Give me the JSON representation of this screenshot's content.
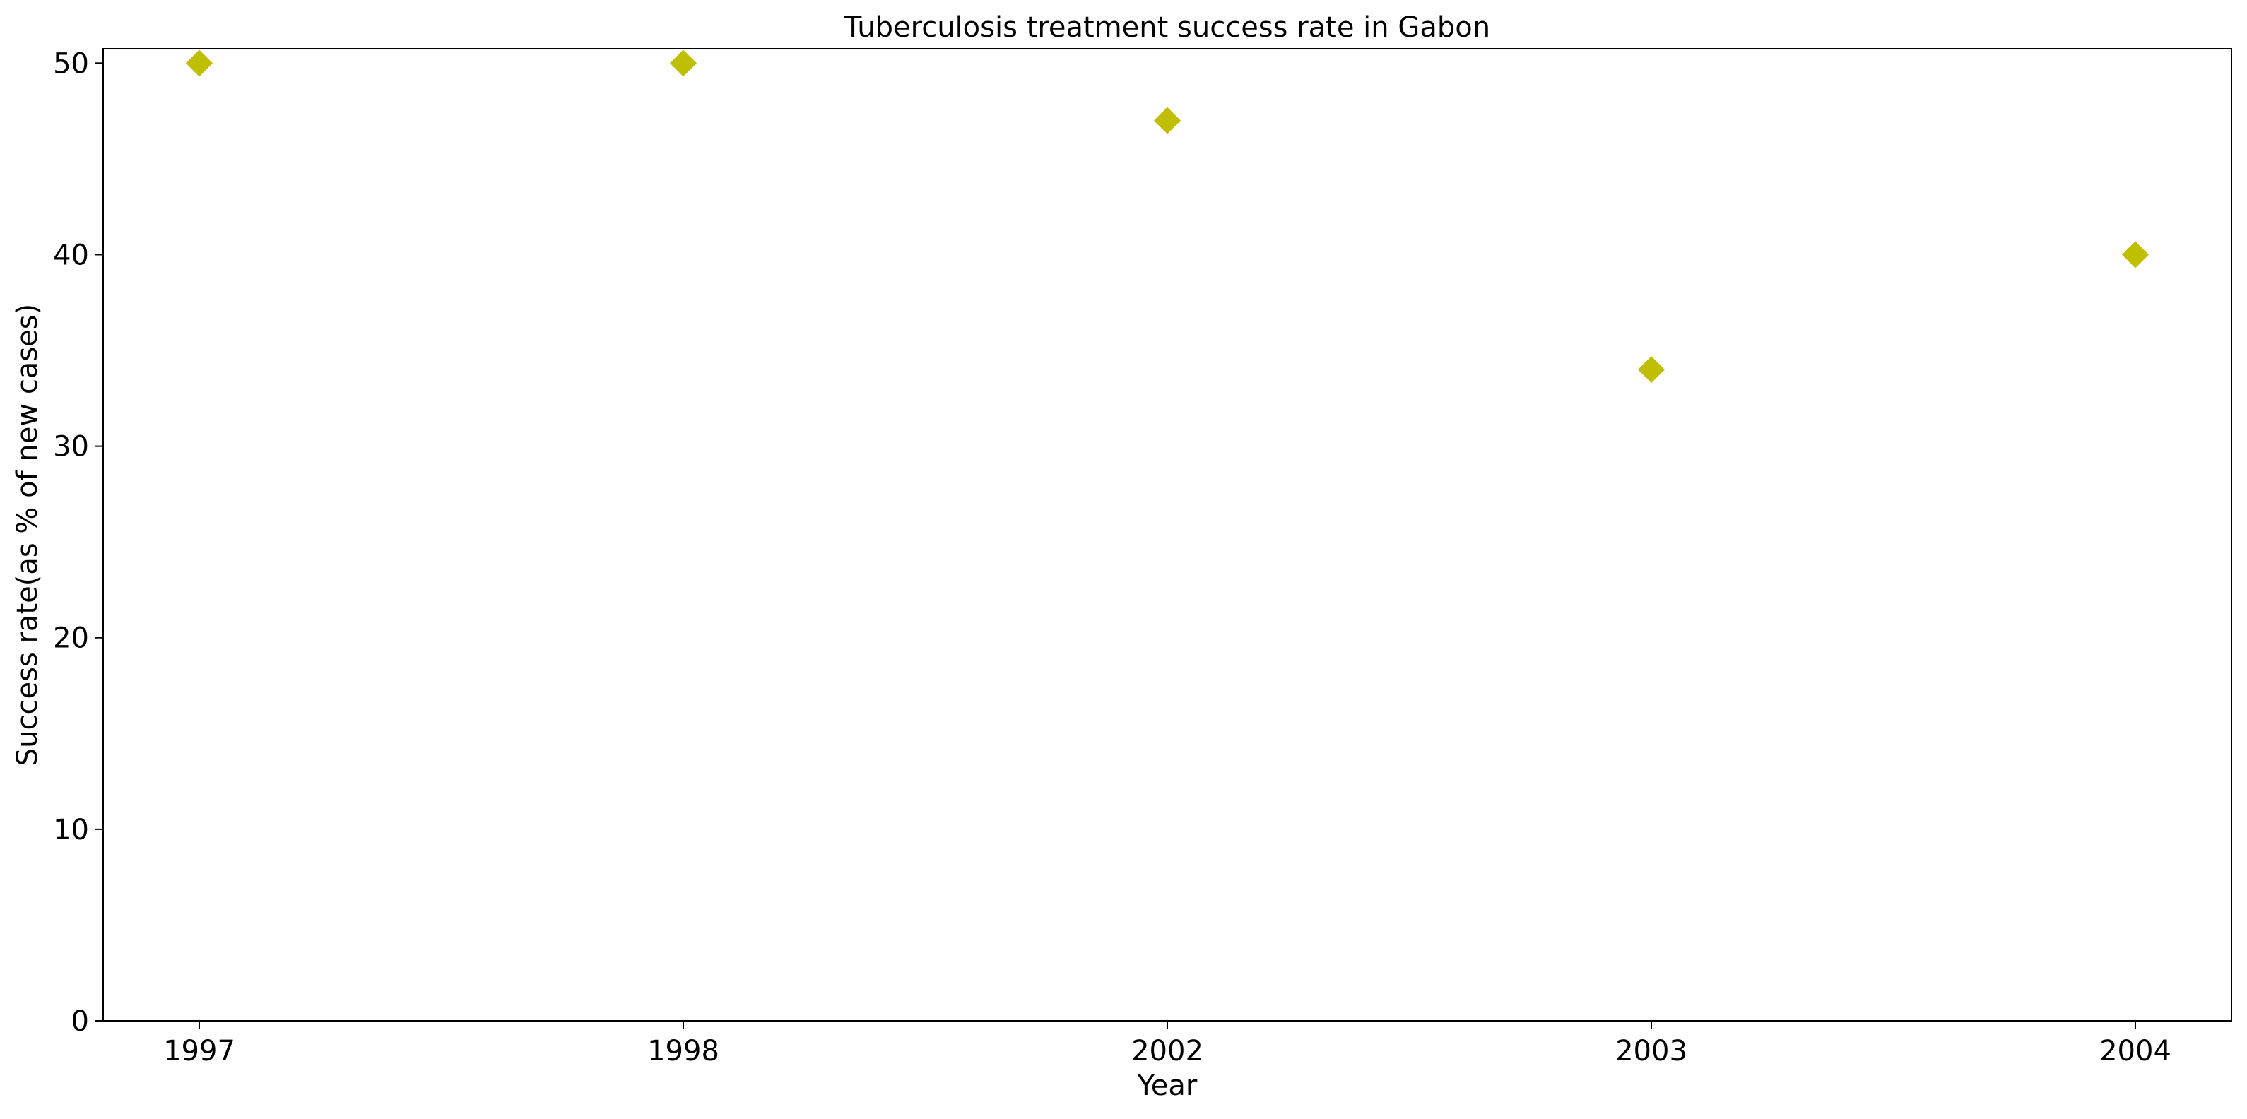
{
  "chart_data": {
    "type": "scatter",
    "title": "Tuberculosis treatment success rate in Gabon",
    "xlabel": "Year",
    "ylabel": "Success rate(as % of new cases)",
    "categories": [
      "1997",
      "1998",
      "2002",
      "2003",
      "2004"
    ],
    "series": [
      {
        "values": [
          50,
          50,
          47,
          34,
          40
        ]
      }
    ],
    "marker": "diamond",
    "marker_color": "#bfbf00",
    "ylim": [
      0,
      50.75
    ],
    "yticks": [
      0,
      10,
      20,
      30,
      40,
      50
    ],
    "grid": false,
    "legend": "none"
  }
}
